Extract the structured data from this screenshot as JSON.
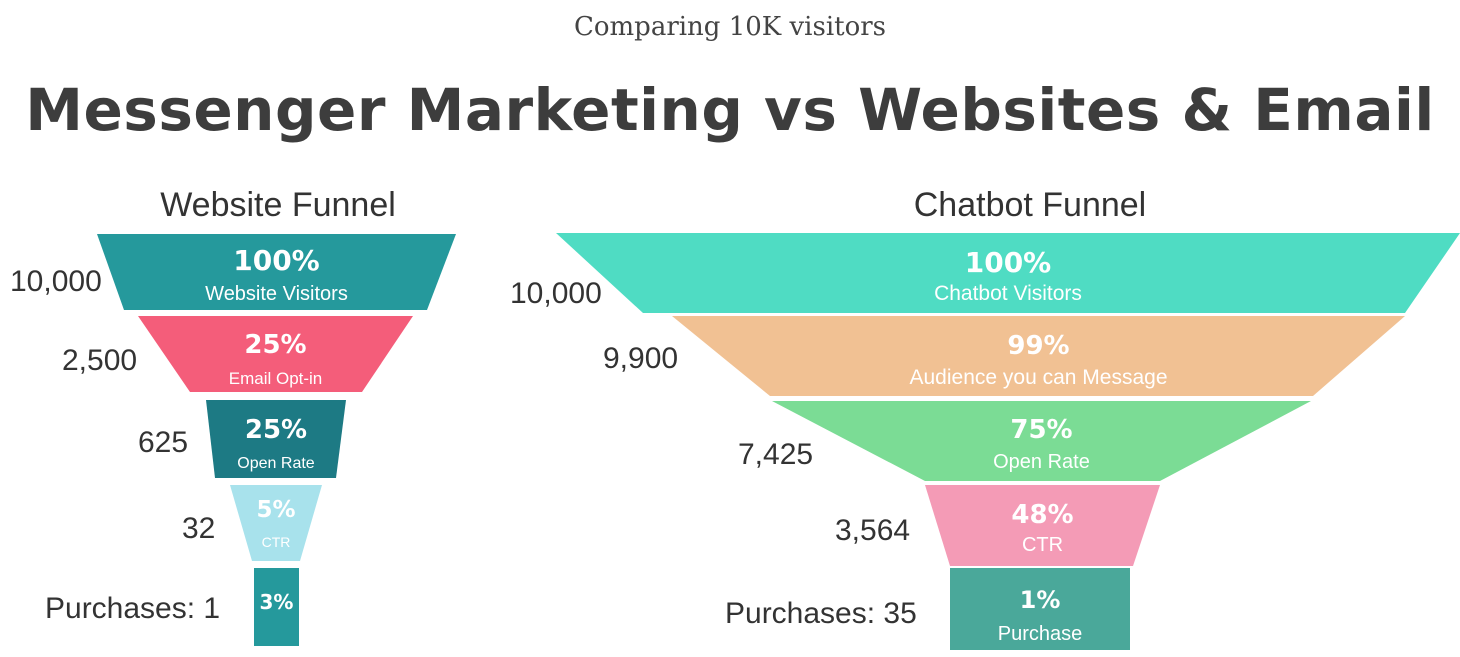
{
  "subtitle": "Comparing 10K visitors",
  "title": "Messenger Marketing vs Websites & Email",
  "chart_data": [
    {
      "type": "funnel",
      "title": "Website Funnel",
      "stages": [
        {
          "label": "Website Visitors",
          "percent": "100%",
          "count": "10,000",
          "color": "#25999c"
        },
        {
          "label": "Email Opt-in",
          "percent": "25%",
          "count": "2,500",
          "color": "#f45d7a"
        },
        {
          "label": "Open Rate",
          "percent": "25%",
          "count": "625",
          "color": "#1d7a84"
        },
        {
          "label": "CTR",
          "percent": "5%",
          "count": "32",
          "color": "#a8e2ec"
        },
        {
          "label": "",
          "percent": "3%",
          "count": "Purchases: 1",
          "color": "#25999c"
        }
      ]
    },
    {
      "type": "funnel",
      "title": "Chatbot Funnel",
      "stages": [
        {
          "label": "Chatbot Visitors",
          "percent": "100%",
          "count": "10,000",
          "color": "#4fdcc3"
        },
        {
          "label": "Audience you can Message",
          "percent": "99%",
          "count": "9,900",
          "color": "#f1c193"
        },
        {
          "label": "Open Rate",
          "percent": "75%",
          "count": "7,425",
          "color": "#7bdc95"
        },
        {
          "label": "CTR",
          "percent": "48%",
          "count": "3,564",
          "color": "#f49bb6"
        },
        {
          "label": "Purchase",
          "percent": "1%",
          "count": "Purchases: 35",
          "color": "#4aa89a"
        }
      ]
    }
  ]
}
